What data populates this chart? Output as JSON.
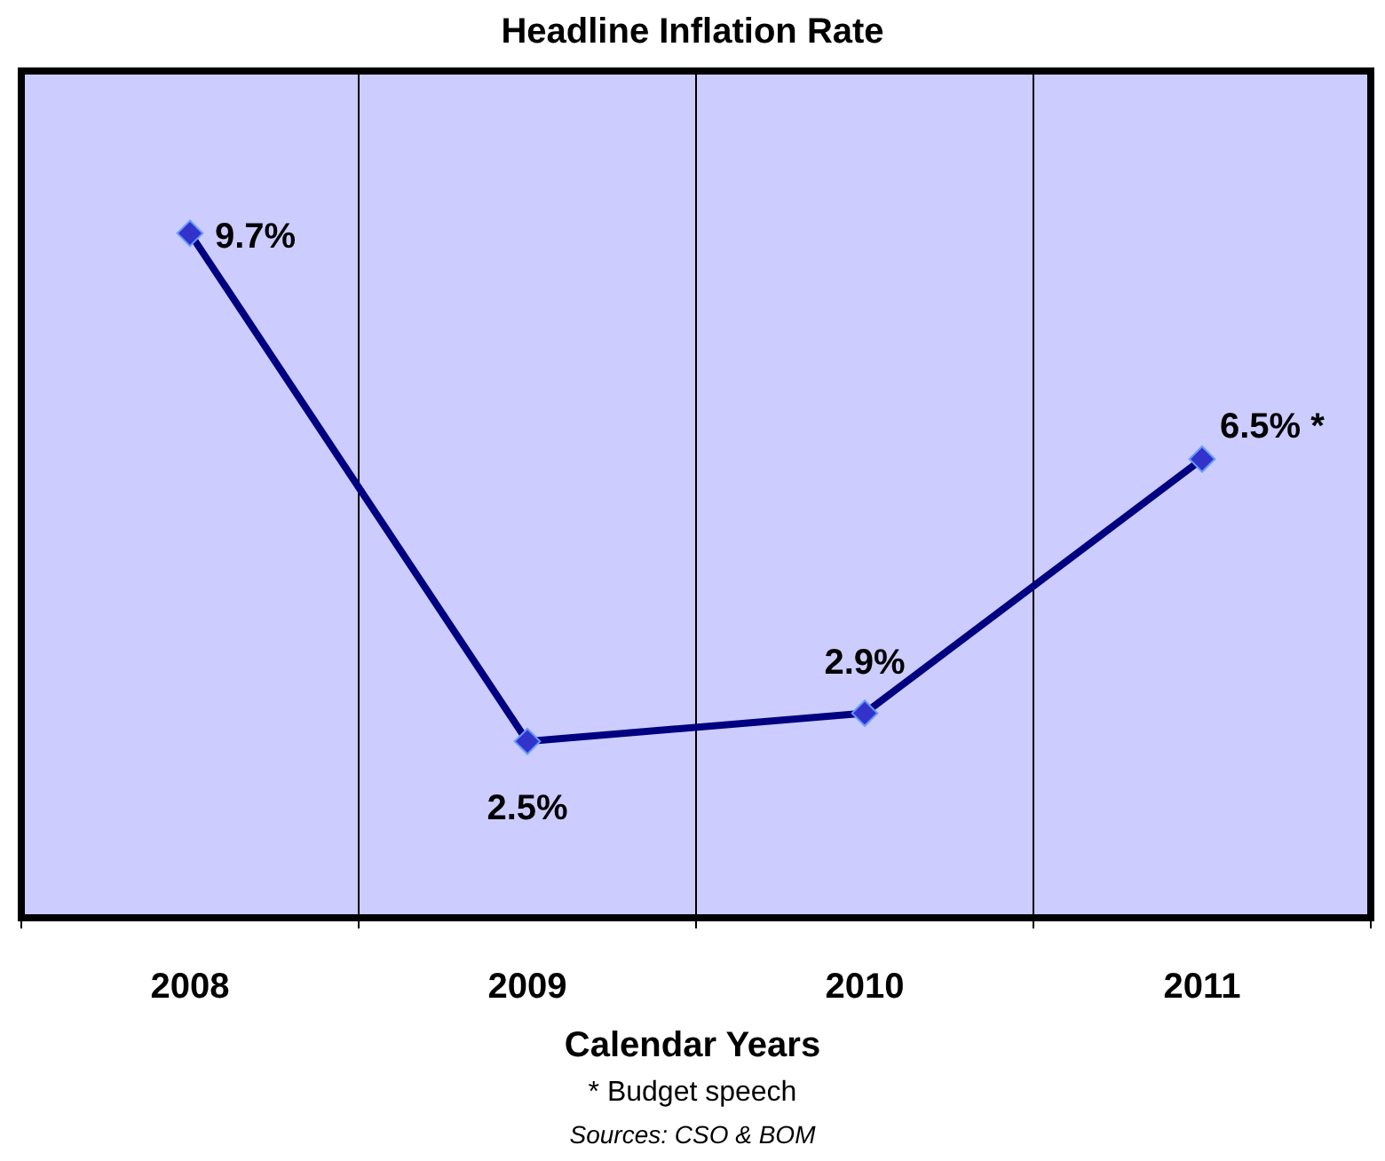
{
  "chart_data": {
    "type": "line",
    "title": "Headline Inflation Rate",
    "xlabel": "Calendar Years",
    "categories": [
      "2008",
      "2009",
      "2010",
      "2011"
    ],
    "series": [
      {
        "color": "#000080",
        "values": [
          9.7,
          2.5,
          2.9,
          6.5
        ],
        "value_labels": [
          "9.7%",
          "2.5%",
          "2.9%",
          "6.5% *"
        ]
      }
    ],
    "ylim": [
      0,
      12
    ],
    "tick_labels": "x",
    "grid": "x",
    "marker": "diamond",
    "line_style": "solid",
    "annotations": [
      "* Budget speech",
      "Sources: CSO & BOM"
    ]
  }
}
